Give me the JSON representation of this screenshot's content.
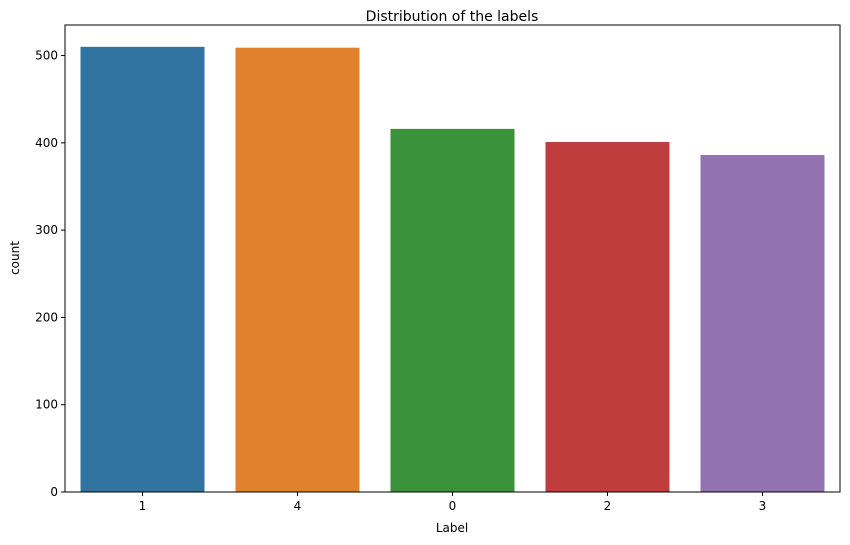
{
  "chart_data": {
    "type": "bar",
    "title": "Distribution of the labels",
    "xlabel": "Label",
    "ylabel": "count",
    "categories": [
      "1",
      "4",
      "0",
      "2",
      "3"
    ],
    "values": [
      510,
      509,
      416,
      401,
      386
    ],
    "colors": [
      "#3274a1",
      "#e1812c",
      "#3a923a",
      "#c03d3e",
      "#9372b2"
    ],
    "ylim": [
      0,
      535
    ],
    "yticks": [
      0,
      100,
      200,
      300,
      400,
      500
    ],
    "grid": false,
    "legend": "none"
  }
}
